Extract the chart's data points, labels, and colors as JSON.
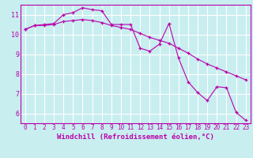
{
  "xlabel": "Windchill (Refroidissement éolien,°C)",
  "background_color": "#c8eef0",
  "grid_color": "#ffffff",
  "line_color": "#bb00aa",
  "xlim": [
    -0.5,
    23.5
  ],
  "ylim": [
    5.5,
    11.5
  ],
  "yticks": [
    6,
    7,
    8,
    9,
    10,
    11
  ],
  "xticks": [
    0,
    1,
    2,
    3,
    4,
    5,
    6,
    7,
    8,
    9,
    10,
    11,
    12,
    13,
    14,
    15,
    16,
    17,
    18,
    19,
    20,
    21,
    22,
    23
  ],
  "series1_x": [
    0,
    1,
    2,
    3,
    4,
    5,
    6,
    7,
    8,
    9,
    10,
    11,
    12,
    13,
    14,
    15,
    16,
    17,
    18,
    19,
    20,
    21,
    22,
    23
  ],
  "series1_y": [
    10.25,
    10.45,
    10.5,
    10.55,
    11.0,
    11.1,
    11.35,
    11.25,
    11.2,
    10.5,
    10.5,
    10.5,
    9.3,
    9.15,
    9.5,
    10.55,
    8.8,
    7.6,
    7.05,
    6.65,
    7.35,
    7.3,
    6.05,
    5.65
  ],
  "series2_x": [
    0,
    1,
    2,
    3,
    4,
    5,
    6,
    7,
    8,
    9,
    10,
    11,
    12,
    13,
    14,
    15,
    16,
    17,
    18,
    19,
    20,
    21,
    22,
    23
  ],
  "series2_y": [
    10.25,
    10.45,
    10.45,
    10.5,
    10.65,
    10.7,
    10.75,
    10.7,
    10.6,
    10.45,
    10.35,
    10.25,
    10.05,
    9.85,
    9.7,
    9.55,
    9.3,
    9.05,
    8.75,
    8.5,
    8.3,
    8.1,
    7.9,
    7.7
  ],
  "marker": "+",
  "markersize": 3,
  "linewidth": 0.8,
  "tick_fontsize": 5.5,
  "xlabel_fontsize": 6.5
}
